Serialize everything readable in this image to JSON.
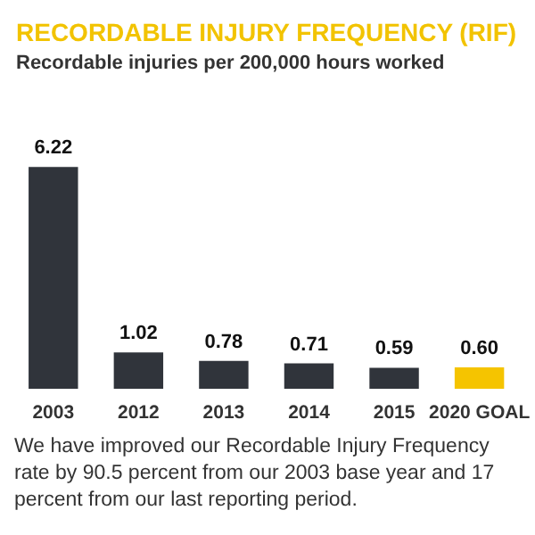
{
  "chart_data": {
    "type": "bar",
    "title": "RECORDABLE INJURY FREQUENCY (RIF)",
    "subtitle": "Recordable injuries per 200,000 hours worked",
    "categories": [
      "2003",
      "2012",
      "2013",
      "2014",
      "2015",
      "2020 GOAL"
    ],
    "values": [
      6.22,
      1.02,
      0.78,
      0.71,
      0.59,
      0.6
    ],
    "value_labels": [
      "6.22",
      "1.02",
      "0.78",
      "0.71",
      "0.59",
      "0.60"
    ],
    "colors": [
      "#30343b",
      "#30343b",
      "#30343b",
      "#30343b",
      "#30343b",
      "#f5c400"
    ],
    "annotations": [
      "We have improved our Recordable Injury Frequency rate by 90.5 percent from our 2003 base year and 17 percent from our last reporting period."
    ]
  }
}
